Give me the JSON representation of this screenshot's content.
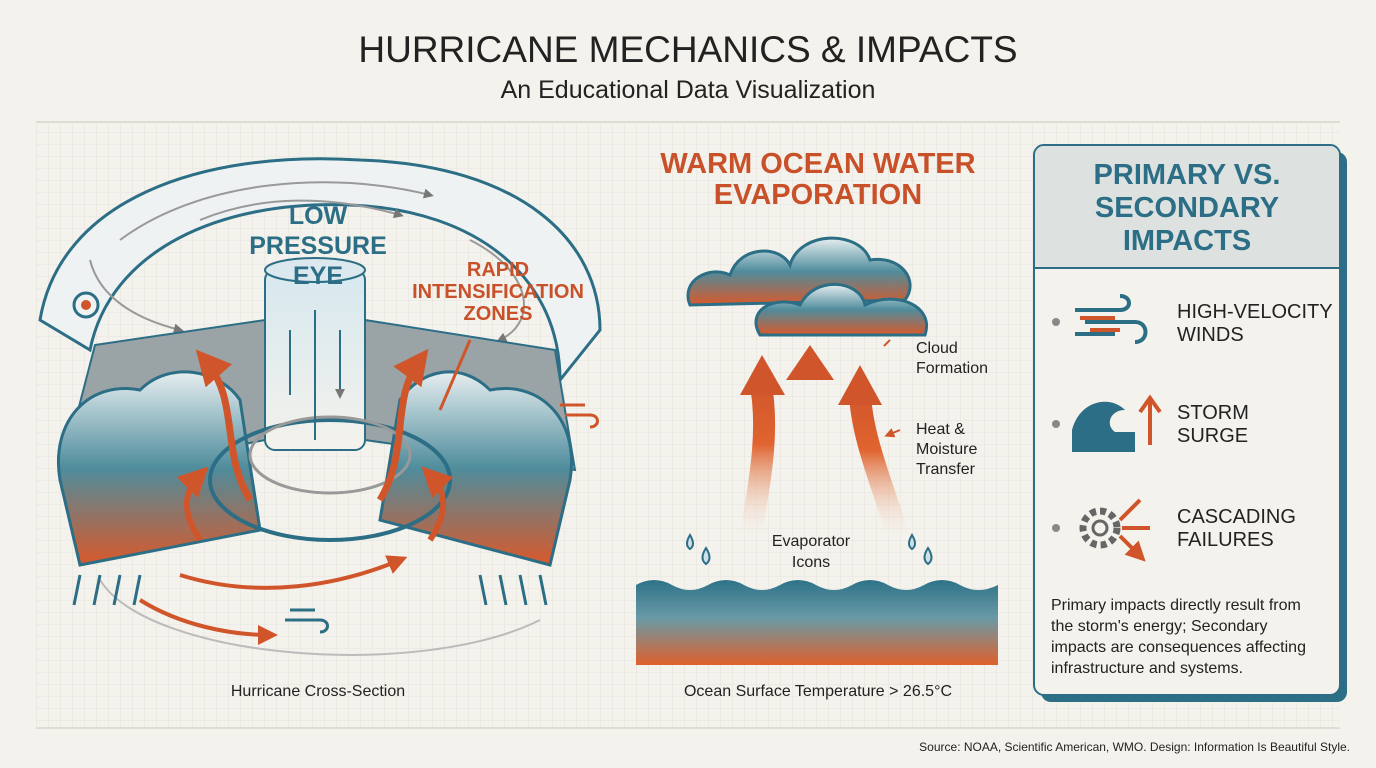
{
  "header": {
    "title": "HURRICANE MECHANICS & IMPACTS",
    "subtitle": "An Educational Data Visualization"
  },
  "cross_section": {
    "eye_label": [
      "LOW",
      "PRESSURE",
      "EYE"
    ],
    "zones_label": [
      "RAPID",
      "INTENSIFICATION",
      "ZONES"
    ],
    "caption": "Hurricane Cross-Section"
  },
  "evaporation": {
    "title": [
      "WARM OCEAN WATER",
      "EVAPORATION"
    ],
    "cloud_label": [
      "Cloud",
      "Formation"
    ],
    "transfer_label": [
      "Heat &",
      "Moisture",
      "Transfer"
    ],
    "evaporator_label": [
      "Evaporator",
      "Icons"
    ],
    "caption": "Ocean Surface Temperature > 26.5°C"
  },
  "impacts": {
    "title": [
      "PRIMARY VS.",
      "SECONDARY",
      "IMPACTS"
    ],
    "items": [
      {
        "label": [
          "HIGH-VELOCITY",
          "WINDS"
        ]
      },
      {
        "label": [
          "STORM",
          "SURGE"
        ]
      },
      {
        "label": [
          "CASCADING",
          "FAILURES"
        ]
      }
    ],
    "note": [
      "Primary impacts directly result from",
      "the storm's energy; Secondary",
      "impacts are consequences affecting",
      "infrastructure and systems."
    ]
  },
  "footer": {
    "source": "Source: NOAA, Scientific American, WMO. Design: Information Is Beautiful Style."
  }
}
